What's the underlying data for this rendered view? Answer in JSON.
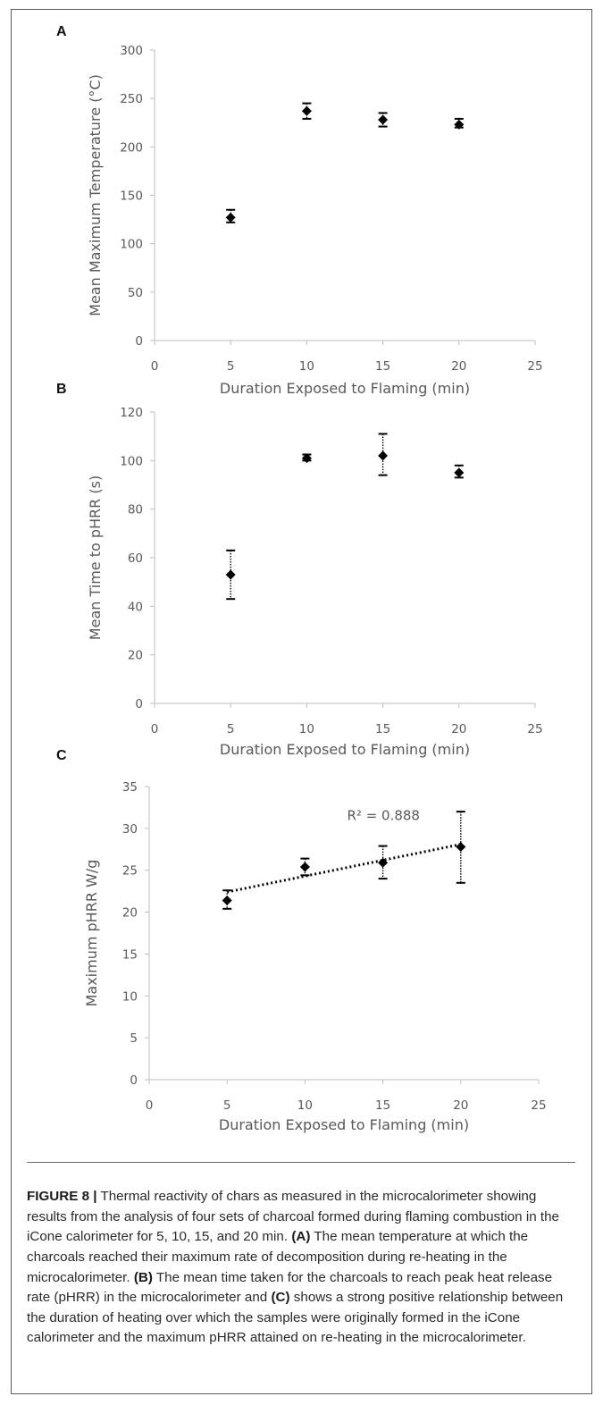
{
  "figure": {
    "caption_label": "FIGURE 8 |",
    "caption_parts": [
      {
        "text": " Thermal reactivity of chars as measured in the microcalorimeter showing results from the analysis of four sets of charcoal formed during flaming combustion in the iCone calorimeter for 5, 10, 15, and 20 min. ",
        "bold": false
      },
      {
        "text": "(A)",
        "bold": true
      },
      {
        "text": " The mean temperature at which the charcoals reached their maximum rate of decomposition during re-heating in the microcalorimeter. ",
        "bold": false
      },
      {
        "text": "(B)",
        "bold": true
      },
      {
        "text": " The mean time taken for the charcoals to reach peak heat release rate (pHRR) in the microcalorimeter and ",
        "bold": false
      },
      {
        "text": "(C)",
        "bold": true
      },
      {
        "text": " shows a strong positive relationship between the duration of heating over which the samples were originally formed in the iCone calorimeter and the maximum pHRR attained on re-heating in the microcalorimeter.",
        "bold": false
      }
    ]
  },
  "chart_data": [
    {
      "panel": "A",
      "type": "scatter",
      "xlabel": "Duration Exposed to Flaming (min)",
      "ylabel": "Mean Maximum Temperature (°C)",
      "xlim": [
        0,
        25
      ],
      "ylim": [
        0,
        300
      ],
      "xticks": [
        0,
        5,
        10,
        15,
        20,
        25
      ],
      "yticks": [
        0,
        50,
        100,
        150,
        200,
        250,
        300
      ],
      "grid": false,
      "x": [
        5,
        10,
        15,
        20
      ],
      "y": [
        127,
        237,
        228,
        223
      ],
      "error_low": [
        122,
        229,
        221,
        220
      ],
      "error_high": [
        135,
        245,
        235,
        229
      ],
      "trendline": null,
      "annotation": ""
    },
    {
      "panel": "B",
      "type": "scatter",
      "xlabel": "Duration Exposed to Flaming (min)",
      "ylabel": "Mean Time to pHRR (s)",
      "xlim": [
        0,
        25
      ],
      "ylim": [
        0,
        120
      ],
      "xticks": [
        0,
        5,
        10,
        15,
        20,
        25
      ],
      "yticks": [
        0,
        20,
        40,
        60,
        80,
        100,
        120
      ],
      "grid": false,
      "x": [
        5,
        10,
        15,
        20
      ],
      "y": [
        53,
        101,
        102,
        95
      ],
      "error_low": [
        43,
        100,
        94,
        93
      ],
      "error_high": [
        63,
        102.5,
        111,
        98
      ],
      "trendline": null,
      "annotation": ""
    },
    {
      "panel": "C",
      "type": "scatter",
      "xlabel": "Duration Exposed to Flaming (min)",
      "ylabel": "Maximum pHRR W/g",
      "xlim": [
        0,
        25
      ],
      "ylim": [
        0,
        35
      ],
      "xticks": [
        0,
        5,
        10,
        15,
        20,
        25
      ],
      "yticks": [
        0,
        5,
        10,
        15,
        20,
        25,
        30,
        35
      ],
      "grid": false,
      "x": [
        5,
        10,
        15,
        20
      ],
      "y": [
        21.4,
        25.4,
        25.9,
        27.8
      ],
      "error_low": [
        20.4,
        24.4,
        24.0,
        23.5
      ],
      "error_high": [
        22.6,
        26.4,
        27.9,
        32.0
      ],
      "trendline": {
        "type": "linear",
        "style": "dotted",
        "from": [
          5,
          22.4
        ],
        "to": [
          20,
          28.1
        ]
      },
      "annotation": "R² = 0.888"
    }
  ],
  "colors": {
    "marker": "#000000",
    "axis": "#bfbfbf",
    "tick_text": "#595959",
    "frame": "#5a5a5a"
  }
}
